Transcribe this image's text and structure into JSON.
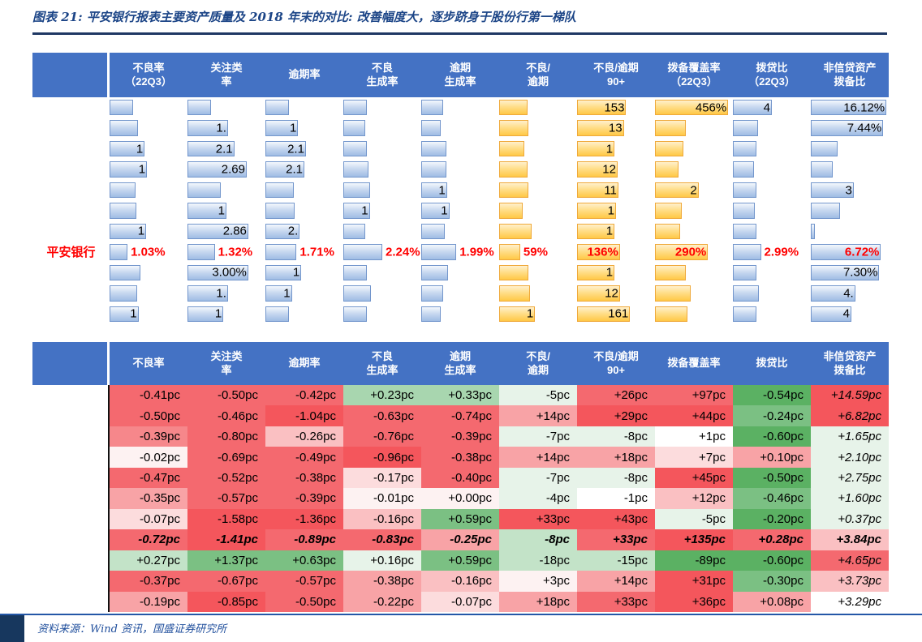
{
  "title": "图表 21: 平安银行报表主要资产质量及 2018 年末的对比: 改善幅度大，逐步跻身于股份行第一梯队",
  "source": "资料来源：Wind 资讯，国盛证券研究所",
  "colors": {
    "header_bg": "#4472C4",
    "title_blue": "#1C4587",
    "rule_navy": "#1F3864",
    "highlight_red": "#FF0000",
    "bar_blue_border": "#7396CC",
    "bar_orange_border": "#EFA93A"
  },
  "chart_data": [
    {
      "type": "table",
      "name": "asset-quality-databar-table",
      "note": "数据条表格：各银行资产质量指标，柱长为指标相对大小(w=列宽比例)，仅部分数值可见；平安银行行以红色数值标出",
      "headers": [
        "不良率\n（22Q3）",
        "关注类\n率",
        "逾期率",
        "不良\n生成率",
        "逾期\n生成率",
        "不良/\n逾期",
        "不良/逾期\n90+",
        "拨备覆盖率\n（22Q3）",
        "拨贷比\n（22Q3）",
        "非信贷资产\n拨备比"
      ],
      "orange_cols": [
        6,
        7,
        8
      ],
      "rows": [
        {
          "label": "",
          "highlight": false,
          "cells": [
            {
              "w": 0.3,
              "t": ""
            },
            {
              "w": 0.3,
              "t": ""
            },
            {
              "w": 0.3,
              "t": ""
            },
            {
              "w": 0.3,
              "t": ""
            },
            {
              "w": 0.28,
              "t": ""
            },
            {
              "w": 0.36,
              "t": ""
            },
            {
              "w": 0.63,
              "t": "153"
            },
            {
              "w": 0.94,
              "t": "456%"
            },
            {
              "w": 0.5,
              "t": "4"
            },
            {
              "w": 0.97,
              "t": "16.12%"
            }
          ]
        },
        {
          "label": "",
          "highlight": false,
          "cells": [
            {
              "w": 0.36,
              "t": ""
            },
            {
              "w": 0.52,
              "t": "1."
            },
            {
              "w": 0.42,
              "t": "1"
            },
            {
              "w": 0.28,
              "t": ""
            },
            {
              "w": 0.25,
              "t": ""
            },
            {
              "w": 0.38,
              "t": ""
            },
            {
              "w": 0.6,
              "t": "13"
            },
            {
              "w": 0.4,
              "t": ""
            },
            {
              "w": 0.32,
              "t": ""
            },
            {
              "w": 0.93,
              "t": "7.44%"
            }
          ]
        },
        {
          "label": "",
          "highlight": false,
          "cells": [
            {
              "w": 0.45,
              "t": "1"
            },
            {
              "w": 0.6,
              "t": "2.1"
            },
            {
              "w": 0.52,
              "t": "2.1"
            },
            {
              "w": 0.3,
              "t": ""
            },
            {
              "w": 0.32,
              "t": ""
            },
            {
              "w": 0.32,
              "t": ""
            },
            {
              "w": 0.48,
              "t": "1"
            },
            {
              "w": 0.36,
              "t": ""
            },
            {
              "w": 0.3,
              "t": ""
            },
            {
              "w": 0.34,
              "t": ""
            }
          ]
        },
        {
          "label": "",
          "highlight": false,
          "cells": [
            {
              "w": 0.48,
              "t": "1"
            },
            {
              "w": 0.76,
              "t": "2.69"
            },
            {
              "w": 0.5,
              "t": "2.1"
            },
            {
              "w": 0.32,
              "t": ""
            },
            {
              "w": 0.32,
              "t": ""
            },
            {
              "w": 0.36,
              "t": ""
            },
            {
              "w": 0.52,
              "t": "12"
            },
            {
              "w": 0.3,
              "t": ""
            },
            {
              "w": 0.27,
              "t": ""
            },
            {
              "w": 0.28,
              "t": ""
            }
          ]
        },
        {
          "label": "",
          "highlight": false,
          "cells": [
            {
              "w": 0.33,
              "t": ""
            },
            {
              "w": 0.43,
              "t": ""
            },
            {
              "w": 0.36,
              "t": ""
            },
            {
              "w": 0.34,
              "t": ""
            },
            {
              "w": 0.33,
              "t": "1"
            },
            {
              "w": 0.38,
              "t": ""
            },
            {
              "w": 0.53,
              "t": "11"
            },
            {
              "w": 0.56,
              "t": "2"
            },
            {
              "w": 0.3,
              "t": ""
            },
            {
              "w": 0.55,
              "t": "3"
            }
          ]
        },
        {
          "label": "",
          "highlight": false,
          "cells": [
            {
              "w": 0.34,
              "t": ""
            },
            {
              "w": 0.5,
              "t": "1"
            },
            {
              "w": 0.38,
              "t": ""
            },
            {
              "w": 0.34,
              "t": "1"
            },
            {
              "w": 0.36,
              "t": "1"
            },
            {
              "w": 0.3,
              "t": ""
            },
            {
              "w": 0.5,
              "t": "1"
            },
            {
              "w": 0.34,
              "t": ""
            },
            {
              "w": 0.28,
              "t": ""
            },
            {
              "w": 0.38,
              "t": ""
            }
          ]
        },
        {
          "label": "",
          "highlight": false,
          "cells": [
            {
              "w": 0.47,
              "t": "1"
            },
            {
              "w": 0.78,
              "t": "2.86"
            },
            {
              "w": 0.44,
              "t": "2."
            },
            {
              "w": 0.28,
              "t": ""
            },
            {
              "w": 0.3,
              "t": ""
            },
            {
              "w": 0.42,
              "t": ""
            },
            {
              "w": 0.48,
              "t": "1"
            },
            {
              "w": 0.32,
              "t": ""
            },
            {
              "w": 0.3,
              "t": ""
            },
            {
              "w": 0.05,
              "t": ""
            }
          ]
        },
        {
          "label": "平安银行",
          "highlight": true,
          "cells": [
            {
              "w": 0.23,
              "t": "1.03%",
              "pos": "out"
            },
            {
              "w": 0.35,
              "t": "1.32%",
              "pos": "out"
            },
            {
              "w": 0.4,
              "t": "1.71%",
              "pos": "out"
            },
            {
              "w": 0.5,
              "t": "2.24%",
              "pos": "out"
            },
            {
              "w": 0.45,
              "t": "1.99%",
              "pos": "out"
            },
            {
              "w": 0.27,
              "t": "59%",
              "pos": "out"
            },
            {
              "w": 0.55,
              "t": "136%"
            },
            {
              "w": 0.68,
              "t": "290%"
            },
            {
              "w": 0.36,
              "t": "2.99%",
              "pos": "out"
            },
            {
              "w": 0.9,
              "t": "6.72%"
            }
          ]
        },
        {
          "label": "",
          "highlight": false,
          "cells": [
            {
              "w": 0.4,
              "t": ""
            },
            {
              "w": 0.78,
              "t": "3.00%"
            },
            {
              "w": 0.46,
              "t": "1"
            },
            {
              "w": 0.3,
              "t": ""
            },
            {
              "w": 0.34,
              "t": ""
            },
            {
              "w": 0.38,
              "t": ""
            },
            {
              "w": 0.48,
              "t": "1"
            },
            {
              "w": 0.4,
              "t": ""
            },
            {
              "w": 0.3,
              "t": ""
            },
            {
              "w": 0.88,
              "t": "7.30%"
            }
          ]
        },
        {
          "label": "",
          "highlight": false,
          "cells": [
            {
              "w": 0.35,
              "t": ""
            },
            {
              "w": 0.52,
              "t": "1."
            },
            {
              "w": 0.34,
              "t": "1"
            },
            {
              "w": 0.35,
              "t": ""
            },
            {
              "w": 0.28,
              "t": ""
            },
            {
              "w": 0.4,
              "t": ""
            },
            {
              "w": 0.55,
              "t": "12"
            },
            {
              "w": 0.46,
              "t": ""
            },
            {
              "w": 0.33,
              "t": ""
            },
            {
              "w": 0.57,
              "t": "4."
            }
          ]
        },
        {
          "label": "",
          "highlight": false,
          "cells": [
            {
              "w": 0.37,
              "t": "1"
            },
            {
              "w": 0.46,
              "t": "1"
            },
            {
              "w": 0.3,
              "t": ""
            },
            {
              "w": 0.3,
              "t": ""
            },
            {
              "w": 0.25,
              "t": ""
            },
            {
              "w": 0.46,
              "t": "1"
            },
            {
              "w": 0.68,
              "t": "161"
            },
            {
              "w": 0.42,
              "t": ""
            },
            {
              "w": 0.3,
              "t": ""
            },
            {
              "w": 0.52,
              "t": "4"
            }
          ]
        }
      ]
    },
    {
      "type": "table",
      "name": "change-vs-2018-heatmap",
      "note": "较2018年末变化(pc=百分点)热力表，红色=上升/恶化着色，绿色=下降/改善着色；加粗斜体行为平安银行",
      "headers": [
        "不良率",
        "关注类\n率",
        "逾期率",
        "不良\n生成率",
        "逾期\n生成率",
        "不良/\n逾期",
        "不良/逾期\n90+",
        "拨备覆盖率",
        "拨贷比",
        "非信贷资产\n拨备比"
      ],
      "rows": [
        {
          "emphasis": false,
          "values": [
            "-0.41pc",
            "-0.50pc",
            "-0.42pc",
            "+0.23pc",
            "+0.33pc",
            "-5pc",
            "+26pc",
            "+97pc",
            "-0.54pc",
            "+14.59pc"
          ],
          "cell_colors": [
            "#F4696F",
            "#F4696F",
            "#F4696F",
            "#A8D6AF",
            "#A8D6AF",
            "#E7F3E9",
            "#F4696F",
            "#F4696F",
            "#5BB163",
            "#F4565C"
          ]
        },
        {
          "emphasis": false,
          "values": [
            "-0.50pc",
            "-0.46pc",
            "-1.04pc",
            "-0.63pc",
            "-0.74pc",
            "+14pc",
            "+29pc",
            "+44pc",
            "-0.24pc",
            "+6.82pc"
          ],
          "cell_colors": [
            "#F4696F",
            "#F4696F",
            "#F4565C",
            "#F4696F",
            "#F4696F",
            "#F8A3A6",
            "#F4565C",
            "#F4565C",
            "#7BC083",
            "#F4565C"
          ]
        },
        {
          "emphasis": false,
          "values": [
            "-0.39pc",
            "-0.80pc",
            "-0.26pc",
            "-0.76pc",
            "-0.39pc",
            "-7pc",
            "-8pc",
            "+1pc",
            "-0.60pc",
            "+1.65pc"
          ],
          "cell_colors": [
            "#F6878B",
            "#F4696F",
            "#FAC0C2",
            "#F4696F",
            "#F4696F",
            "#E7F3E9",
            "#E7F3E9",
            "#FFFFFF",
            "#5BB163",
            "#E7F3E9"
          ]
        },
        {
          "emphasis": false,
          "values": [
            "-0.02pc",
            "-0.69pc",
            "-0.49pc",
            "-0.96pc",
            "-0.38pc",
            "+14pc",
            "+18pc",
            "+7pc",
            "+0.10pc",
            "+2.10pc"
          ],
          "cell_colors": [
            "#FDF2F2",
            "#F4696F",
            "#F4696F",
            "#F4565C",
            "#F4696F",
            "#F8A3A6",
            "#F8A3A6",
            "#FCDCDD",
            "#F8A3A6",
            "#E7F3E9"
          ]
        },
        {
          "emphasis": false,
          "values": [
            "-0.47pc",
            "-0.52pc",
            "-0.38pc",
            "-0.17pc",
            "-0.40pc",
            "-7pc",
            "-8pc",
            "+45pc",
            "-0.50pc",
            "+2.75pc"
          ],
          "cell_colors": [
            "#F4696F",
            "#F4696F",
            "#F4696F",
            "#FCDCDD",
            "#F4696F",
            "#E7F3E9",
            "#E7F3E9",
            "#F4565C",
            "#5BB163",
            "#E7F3E9"
          ]
        },
        {
          "emphasis": false,
          "values": [
            "-0.35pc",
            "-0.57pc",
            "-0.39pc",
            "-0.01pc",
            "+0.00pc",
            "-4pc",
            "-1pc",
            "+12pc",
            "-0.46pc",
            "+1.60pc"
          ],
          "cell_colors": [
            "#F8A3A6",
            "#F4696F",
            "#F4696F",
            "#FDF2F2",
            "#FDF2F2",
            "#E7F3E9",
            "#FFFFFF",
            "#FAC0C2",
            "#7BC083",
            "#E7F3E9"
          ]
        },
        {
          "emphasis": false,
          "values": [
            "-0.07pc",
            "-1.58pc",
            "-1.36pc",
            "-0.16pc",
            "+0.59pc",
            "+33pc",
            "+43pc",
            "-5pc",
            "-0.20pc",
            "+0.37pc"
          ],
          "cell_colors": [
            "#FCDCDD",
            "#F4565C",
            "#F4565C",
            "#FAC0C2",
            "#7BC083",
            "#F4565C",
            "#F4565C",
            "#E7F3E9",
            "#5BB163",
            "#E7F3E9"
          ]
        },
        {
          "emphasis": true,
          "values": [
            "-0.72pc",
            "-1.41pc",
            "-0.89pc",
            "-0.83pc",
            "-0.25pc",
            "-8pc",
            "+33pc",
            "+135pc",
            "+0.28pc",
            "+3.84pc"
          ],
          "cell_colors": [
            "#F4696F",
            "#F4565C",
            "#F4696F",
            "#F4696F",
            "#F8A3A6",
            "#C3E3C8",
            "#F4696F",
            "#F4565C",
            "#F4696F",
            "#FAC0C2"
          ]
        },
        {
          "emphasis": false,
          "values": [
            "+0.27pc",
            "+1.37pc",
            "+0.63pc",
            "+0.16pc",
            "+0.59pc",
            "-18pc",
            "-15pc",
            "-89pc",
            "-0.60pc",
            "+4.65pc"
          ],
          "cell_colors": [
            "#C3E3C8",
            "#7BC083",
            "#7BC083",
            "#E7F3E9",
            "#7BC083",
            "#C3E3C8",
            "#C3E3C8",
            "#5BB163",
            "#5BB163",
            "#F4696F"
          ]
        },
        {
          "emphasis": false,
          "values": [
            "-0.37pc",
            "-0.67pc",
            "-0.57pc",
            "-0.38pc",
            "-0.16pc",
            "+3pc",
            "+14pc",
            "+31pc",
            "-0.30pc",
            "+3.73pc"
          ],
          "cell_colors": [
            "#F4696F",
            "#F4696F",
            "#F4696F",
            "#F8A3A6",
            "#FAC0C2",
            "#FDF2F2",
            "#F8A3A6",
            "#F4565C",
            "#7BC083",
            "#FAC0C2"
          ]
        },
        {
          "emphasis": false,
          "values": [
            "-0.19pc",
            "-0.85pc",
            "-0.50pc",
            "-0.22pc",
            "-0.07pc",
            "+18pc",
            "+33pc",
            "+36pc",
            "+0.08pc",
            "+3.29pc"
          ],
          "cell_colors": [
            "#F8A3A6",
            "#F4565C",
            "#F4696F",
            "#F8A3A6",
            "#FCDCDD",
            "#F8A3A6",
            "#F4696F",
            "#F4565C",
            "#F8A3A6",
            "#FFFFFF"
          ]
        }
      ]
    }
  ]
}
